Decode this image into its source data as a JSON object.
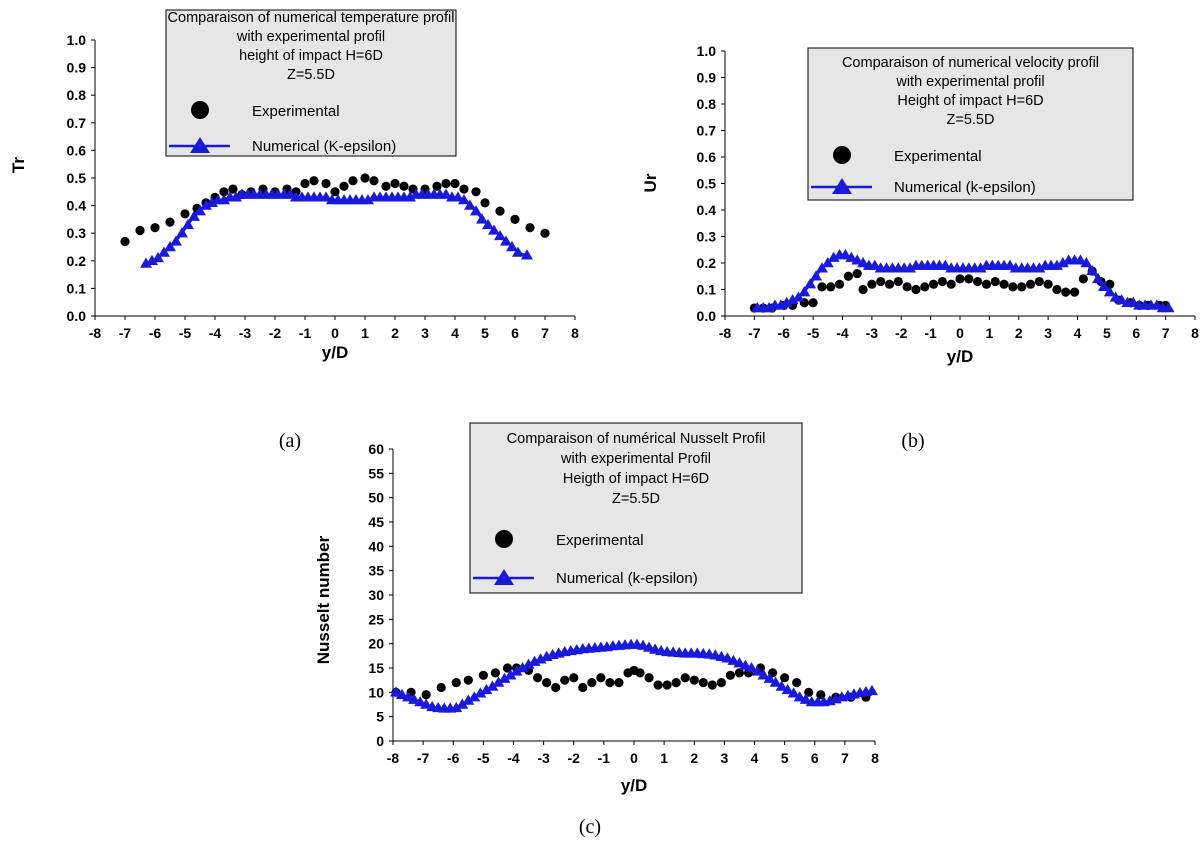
{
  "chart_data": [
    {
      "type": "scatter",
      "panel_label": "(a)",
      "title_lines": [
        "Comparaison of numerical temperature profil",
        "with experimental profil",
        "height of impact H=6D",
        "Z=5.5D"
      ],
      "xlabel": "y/D",
      "ylabel": "Tr",
      "xlim": [
        -8,
        8
      ],
      "ylim": [
        0,
        1.0
      ],
      "xticks": [
        "-8",
        "-7",
        "-6",
        "-5",
        "-4",
        "-3",
        "-2",
        "-1",
        "0",
        "1",
        "2",
        "3",
        "4",
        "5",
        "6",
        "7",
        "8"
      ],
      "yticks": [
        "0.0",
        "0.1",
        "0.2",
        "0.3",
        "0.4",
        "0.5",
        "0.6",
        "0.7",
        "0.8",
        "0.9",
        "1.0"
      ],
      "grid": false,
      "legend_position": "top-center",
      "colors": {
        "experimental": "#000000",
        "numerical": "#1a1adc"
      },
      "series": [
        {
          "name": "Experimental",
          "marker": "circle",
          "x": [
            -7,
            -6.5,
            -6,
            -5.5,
            -5,
            -4.6,
            -4.3,
            -4,
            -3.7,
            -3.4,
            -3.1,
            -2.8,
            -2.4,
            -2,
            -1.6,
            -1.3,
            -1,
            -0.7,
            -0.3,
            0,
            0.3,
            0.6,
            1,
            1.3,
            1.7,
            2,
            2.3,
            2.6,
            3,
            3.4,
            3.7,
            4,
            4.3,
            4.7,
            5,
            5.5,
            6,
            6.5,
            7
          ],
          "y": [
            0.27,
            0.31,
            0.32,
            0.34,
            0.37,
            0.39,
            0.41,
            0.43,
            0.45,
            0.46,
            0.44,
            0.45,
            0.46,
            0.45,
            0.46,
            0.45,
            0.48,
            0.49,
            0.48,
            0.45,
            0.47,
            0.49,
            0.5,
            0.49,
            0.47,
            0.48,
            0.47,
            0.46,
            0.46,
            0.47,
            0.48,
            0.48,
            0.46,
            0.45,
            0.41,
            0.38,
            0.35,
            0.32,
            0.3
          ]
        },
        {
          "name": "Numerical (K-epsilon)",
          "marker": "triangle",
          "x": [
            -6.3,
            -6.1,
            -5.9,
            -5.7,
            -5.5,
            -5.3,
            -5.1,
            -4.9,
            -4.7,
            -4.5,
            -4.3,
            -4.1,
            -3.9,
            -3.7,
            -3.5,
            -3.3,
            -3.1,
            -2.9,
            -2.7,
            -2.5,
            -2.3,
            -2.1,
            -1.9,
            -1.7,
            -1.5,
            -1.3,
            -1.1,
            -0.9,
            -0.7,
            -0.5,
            -0.3,
            -0.1,
            0.1,
            0.3,
            0.5,
            0.7,
            0.9,
            1.1,
            1.3,
            1.5,
            1.7,
            1.9,
            2.1,
            2.3,
            2.5,
            2.7,
            2.9,
            3.1,
            3.3,
            3.5,
            3.7,
            3.9,
            4.1,
            4.3,
            4.5,
            4.7,
            4.9,
            5.1,
            5.3,
            5.5,
            5.7,
            5.9,
            6.1,
            6.4
          ],
          "y": [
            0.19,
            0.2,
            0.21,
            0.23,
            0.25,
            0.27,
            0.3,
            0.33,
            0.36,
            0.38,
            0.4,
            0.41,
            0.42,
            0.42,
            0.43,
            0.43,
            0.44,
            0.44,
            0.44,
            0.44,
            0.44,
            0.44,
            0.44,
            0.44,
            0.44,
            0.43,
            0.43,
            0.43,
            0.43,
            0.43,
            0.43,
            0.42,
            0.42,
            0.42,
            0.42,
            0.42,
            0.42,
            0.42,
            0.43,
            0.43,
            0.43,
            0.43,
            0.43,
            0.43,
            0.43,
            0.44,
            0.44,
            0.44,
            0.44,
            0.44,
            0.44,
            0.43,
            0.43,
            0.42,
            0.4,
            0.38,
            0.35,
            0.33,
            0.31,
            0.29,
            0.27,
            0.25,
            0.23,
            0.22
          ]
        }
      ]
    },
    {
      "type": "scatter",
      "panel_label": "(b)",
      "title_lines": [
        "Comparaison of numerical velocity profil",
        "with experimental profil",
        "Height of impact H=6D",
        "Z=5.5D"
      ],
      "xlabel": "y/D",
      "ylabel": "Ur",
      "xlim": [
        -8,
        8
      ],
      "ylim": [
        0,
        1.0
      ],
      "xticks": [
        "-8",
        "-7",
        "-6",
        "-5",
        "-4",
        "-3",
        "-2",
        "-1",
        "0",
        "1",
        "2",
        "3",
        "4",
        "5",
        "6",
        "7",
        "8"
      ],
      "yticks": [
        "0.0",
        "0.1",
        "0.2",
        "0.3",
        "0.4",
        "0.5",
        "0.6",
        "0.7",
        "0.8",
        "0.9",
        "1.0"
      ],
      "grid": false,
      "legend_position": "top-right",
      "colors": {
        "experimental": "#000000",
        "numerical": "#1a1adc"
      },
      "series": [
        {
          "name": "Experimental",
          "marker": "circle",
          "x": [
            -7,
            -6.7,
            -6.4,
            -6,
            -5.7,
            -5.3,
            -5,
            -4.7,
            -4.4,
            -4.1,
            -3.8,
            -3.5,
            -3.3,
            -3,
            -2.7,
            -2.4,
            -2.1,
            -1.8,
            -1.5,
            -1.2,
            -0.9,
            -0.6,
            -0.3,
            0,
            0.3,
            0.6,
            0.9,
            1.2,
            1.5,
            1.8,
            2.1,
            2.4,
            2.7,
            3,
            3.3,
            3.6,
            3.9,
            4.2,
            4.5,
            4.8,
            5.1,
            5.4,
            5.8,
            6.1,
            6.4,
            6.8,
            7
          ],
          "y": [
            0.03,
            0.03,
            0.03,
            0.04,
            0.04,
            0.05,
            0.05,
            0.11,
            0.11,
            0.12,
            0.15,
            0.16,
            0.1,
            0.12,
            0.13,
            0.12,
            0.13,
            0.11,
            0.1,
            0.11,
            0.12,
            0.13,
            0.12,
            0.14,
            0.14,
            0.13,
            0.12,
            0.13,
            0.12,
            0.11,
            0.11,
            0.12,
            0.13,
            0.12,
            0.1,
            0.09,
            0.09,
            0.14,
            0.17,
            0.13,
            0.12,
            0.06,
            0.05,
            0.04,
            0.04,
            0.04,
            0.04
          ]
        },
        {
          "name": "Numerical (k-epsilon)",
          "marker": "triangle",
          "x": [
            -6.9,
            -6.7,
            -6.5,
            -6.3,
            -6.1,
            -5.9,
            -5.7,
            -5.5,
            -5.3,
            -5.1,
            -4.9,
            -4.7,
            -4.5,
            -4.3,
            -4.1,
            -3.9,
            -3.7,
            -3.5,
            -3.3,
            -3.1,
            -2.9,
            -2.7,
            -2.5,
            -2.3,
            -2.1,
            -1.9,
            -1.7,
            -1.5,
            -1.3,
            -1.1,
            -0.9,
            -0.7,
            -0.5,
            -0.3,
            -0.1,
            0.1,
            0.3,
            0.5,
            0.7,
            0.9,
            1.1,
            1.3,
            1.5,
            1.7,
            1.9,
            2.1,
            2.3,
            2.5,
            2.7,
            2.9,
            3.1,
            3.3,
            3.5,
            3.7,
            3.9,
            4.1,
            4.3,
            4.5,
            4.7,
            4.9,
            5.1,
            5.3,
            5.5,
            5.7,
            5.9,
            6.1,
            6.3,
            6.5,
            6.7,
            6.9,
            7.1
          ],
          "y": [
            0.03,
            0.03,
            0.03,
            0.04,
            0.04,
            0.05,
            0.06,
            0.07,
            0.09,
            0.12,
            0.15,
            0.18,
            0.2,
            0.22,
            0.23,
            0.23,
            0.22,
            0.21,
            0.2,
            0.19,
            0.19,
            0.18,
            0.18,
            0.18,
            0.18,
            0.18,
            0.18,
            0.19,
            0.19,
            0.19,
            0.19,
            0.19,
            0.19,
            0.18,
            0.18,
            0.18,
            0.18,
            0.18,
            0.18,
            0.19,
            0.19,
            0.19,
            0.19,
            0.19,
            0.18,
            0.18,
            0.18,
            0.18,
            0.18,
            0.19,
            0.19,
            0.19,
            0.2,
            0.21,
            0.21,
            0.21,
            0.2,
            0.17,
            0.14,
            0.11,
            0.09,
            0.07,
            0.06,
            0.05,
            0.05,
            0.04,
            0.04,
            0.04,
            0.04,
            0.03,
            0.03
          ]
        }
      ]
    },
    {
      "type": "scatter",
      "panel_label": "(c)",
      "title_lines": [
        "Comparaison of numérical Nusselt Profil",
        "with experimental Profil",
        "Heigth of impact H=6D",
        "Z=5.5D"
      ],
      "xlabel": "y/D",
      "ylabel": "Nusselt number",
      "xlim": [
        -8,
        8
      ],
      "ylim": [
        0,
        60
      ],
      "xticks": [
        "-8",
        "-7",
        "-6",
        "-5",
        "-4",
        "-3",
        "-2",
        "-1",
        "0",
        "1",
        "2",
        "3",
        "4",
        "5",
        "6",
        "7",
        "8"
      ],
      "yticks": [
        "0",
        "5",
        "10",
        "15",
        "20",
        "25",
        "30",
        "35",
        "40",
        "45",
        "50",
        "55",
        "60"
      ],
      "grid": false,
      "legend_position": "top-center",
      "colors": {
        "experimental": "#000000",
        "numerical": "#1a1adc"
      },
      "series": [
        {
          "name": "Experimental",
          "marker": "circle",
          "x": [
            -7.9,
            -7.4,
            -6.9,
            -6.4,
            -5.9,
            -5.5,
            -5,
            -4.6,
            -4.2,
            -3.9,
            -3.5,
            -3.2,
            -2.9,
            -2.6,
            -2.3,
            -2,
            -1.7,
            -1.4,
            -1.1,
            -0.8,
            -0.5,
            -0.2,
            0,
            0.2,
            0.5,
            0.8,
            1.1,
            1.4,
            1.7,
            2,
            2.3,
            2.6,
            2.9,
            3.2,
            3.5,
            3.8,
            4.2,
            4.6,
            5,
            5.4,
            5.8,
            6.2,
            6.7,
            7.2,
            7.7
          ],
          "y": [
            10,
            10,
            9.5,
            11,
            12,
            12.5,
            13.5,
            14,
            15,
            15,
            14.5,
            13,
            12,
            11,
            12.5,
            13,
            11,
            12,
            13,
            12,
            12,
            14,
            14.5,
            14,
            13,
            11.5,
            11.5,
            12,
            13,
            12.5,
            12,
            11.5,
            12,
            13.5,
            14,
            14,
            15,
            14,
            13,
            12,
            10,
            9.5,
            9,
            9,
            9
          ]
        },
        {
          "name": "Numerical (k-epsilon)",
          "marker": "triangle",
          "x": [
            -7.9,
            -7.7,
            -7.5,
            -7.3,
            -7.1,
            -6.9,
            -6.7,
            -6.5,
            -6.3,
            -6.1,
            -5.9,
            -5.7,
            -5.5,
            -5.3,
            -5.1,
            -4.9,
            -4.7,
            -4.5,
            -4.3,
            -4.1,
            -3.9,
            -3.7,
            -3.5,
            -3.3,
            -3.1,
            -2.9,
            -2.7,
            -2.5,
            -2.3,
            -2.1,
            -1.9,
            -1.7,
            -1.5,
            -1.3,
            -1.1,
            -0.9,
            -0.7,
            -0.5,
            -0.3,
            -0.1,
            0.1,
            0.3,
            0.5,
            0.7,
            0.9,
            1.1,
            1.3,
            1.5,
            1.7,
            1.9,
            2.1,
            2.3,
            2.5,
            2.7,
            2.9,
            3.1,
            3.3,
            3.5,
            3.7,
            3.9,
            4.1,
            4.3,
            4.5,
            4.7,
            4.9,
            5.1,
            5.3,
            5.5,
            5.7,
            5.9,
            6.1,
            6.3,
            6.5,
            6.7,
            6.9,
            7.1,
            7.3,
            7.5,
            7.7,
            7.9
          ],
          "y": [
            10,
            9.5,
            9,
            8.5,
            8,
            7.5,
            7,
            6.8,
            6.7,
            6.7,
            6.8,
            7.5,
            8.3,
            9,
            9.8,
            10.5,
            11.2,
            12,
            12.8,
            13.5,
            14.3,
            15,
            15.7,
            16.3,
            16.8,
            17.3,
            17.7,
            18,
            18.3,
            18.5,
            18.7,
            18.9,
            19,
            19.1,
            19.2,
            19.3,
            19.5,
            19.6,
            19.7,
            19.8,
            19.8,
            19.6,
            19.2,
            18.8,
            18.5,
            18.3,
            18.2,
            18.1,
            18,
            18,
            18,
            17.9,
            17.8,
            17.6,
            17.3,
            17,
            16.5,
            16,
            15.5,
            15,
            14.3,
            13.5,
            12.8,
            12,
            11.2,
            10.5,
            9.8,
            9,
            8.5,
            8,
            8,
            8,
            8.2,
            8.6,
            9,
            9.3,
            9.6,
            9.9,
            10.1,
            10.3
          ]
        }
      ]
    }
  ]
}
